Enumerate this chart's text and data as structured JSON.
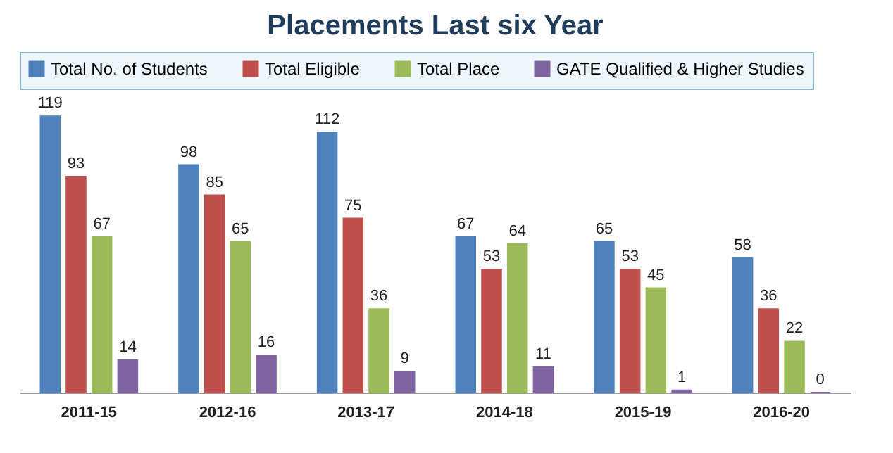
{
  "chart_data": {
    "type": "bar",
    "title": "Placements Last six Year",
    "categories": [
      "2011-15",
      "2012-16",
      "2013-17",
      "2014-18",
      "2015-19",
      "2016-20"
    ],
    "series": [
      {
        "name": "Total No. of Students",
        "color": "#4f81bd",
        "values": [
          119,
          98,
          112,
          67,
          65,
          58
        ]
      },
      {
        "name": "Total Eligible",
        "color": "#c0504d",
        "values": [
          93,
          85,
          75,
          53,
          53,
          36
        ]
      },
      {
        "name": "Total Place",
        "color": "#9bbb59",
        "values": [
          67,
          65,
          36,
          64,
          45,
          22
        ]
      },
      {
        "name": "GATE Qualified & Higher Studies",
        "color": "#8064a2",
        "values": [
          14,
          16,
          9,
          11,
          1,
          0
        ]
      }
    ],
    "data_labels": true,
    "legend": "top"
  }
}
